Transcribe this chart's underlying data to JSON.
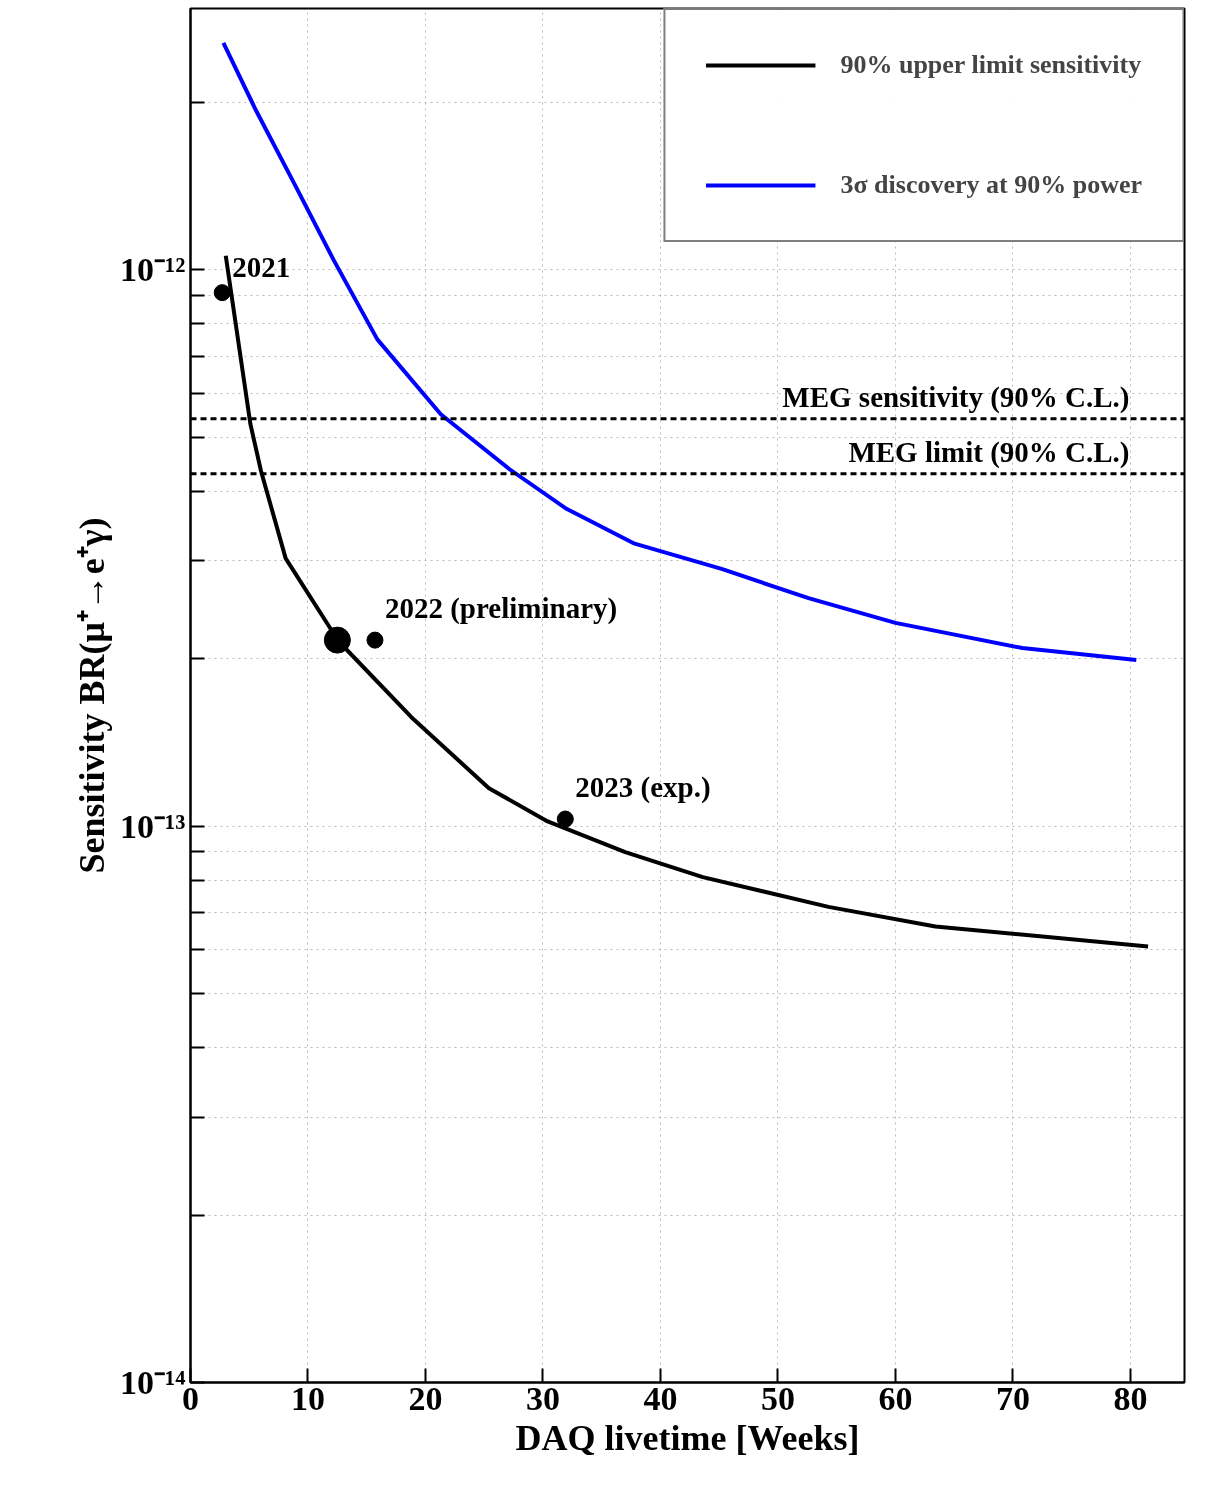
{
  "chart_data": {
    "type": "line",
    "xlabel": "DAQ livetime [Weeks]",
    "ylabel": "Sensitivity BR(μ⁺→e⁺γ)",
    "xlim": [
      0,
      84.6
    ],
    "ylim": [
      1e-14,
      2.95e-12
    ],
    "log": "y",
    "xticks": [
      0,
      10,
      20,
      30,
      40,
      50,
      60,
      70,
      80
    ],
    "yticks": [
      {
        "value": 1e-14,
        "label": "10⁻¹⁴"
      },
      {
        "value": 2e-14,
        "label": null
      },
      {
        "value": 3e-14,
        "label": null
      },
      {
        "value": 4e-14,
        "label": null
      },
      {
        "value": 5e-14,
        "label": null
      },
      {
        "value": 6e-14,
        "label": null
      },
      {
        "value": 7e-14,
        "label": null
      },
      {
        "value": 8e-14,
        "label": null
      },
      {
        "value": 9e-14,
        "label": null
      },
      {
        "value": 1e-13,
        "label": "10⁻¹³"
      },
      {
        "value": 2e-13,
        "label": null
      },
      {
        "value": 3e-13,
        "label": null
      },
      {
        "value": 4e-13,
        "label": null
      },
      {
        "value": 5e-13,
        "label": null
      },
      {
        "value": 6e-13,
        "label": null
      },
      {
        "value": 7e-13,
        "label": null
      },
      {
        "value": 8e-13,
        "label": null
      },
      {
        "value": 9e-13,
        "label": null
      },
      {
        "value": 1e-12,
        "label": "10⁻¹²"
      },
      {
        "value": 2e-12,
        "label": null
      }
    ],
    "grid": true,
    "legend": "top right",
    "series": [
      {
        "name": "90% upper limit sensitivity",
        "color": "#000000",
        "line_style": "solid",
        "x": [
          3.0,
          5.1,
          6.0,
          8.1,
          12.6,
          18.8,
          25.4,
          30.4,
          37,
          43.6,
          54.3,
          63.4,
          81.5
        ],
        "values": [
          1.06e-12,
          5.28e-13,
          4.35e-13,
          3.03e-13,
          2.15e-13,
          1.57e-13,
          1.17e-13,
          1.02e-13,
          8.98e-14,
          8.1e-14,
          7.16e-14,
          6.6e-14,
          6.08e-14
        ]
      },
      {
        "name": "3σ discovery at 90% power",
        "color": "#0000ff",
        "line_style": "solid",
        "x": [
          2.8,
          5.6,
          8.9,
          12.2,
          15.9,
          21.3,
          27.1,
          32,
          37.8,
          45.2,
          52.6,
          60,
          70.8,
          80.5
        ],
        "values": [
          2.56e-12,
          1.93e-12,
          1.42e-12,
          1.04e-12,
          7.5e-13,
          5.5e-13,
          4.39e-13,
          3.72e-13,
          3.22e-13,
          2.9e-13,
          2.57e-13,
          2.32e-13,
          2.09e-13,
          1.99e-13
        ]
      },
      {
        "type": "bubble",
        "color": "#000000",
        "x": [
          2.7,
          12.5,
          15.7,
          31.9
        ],
        "values": [
          9.1e-13,
          2.16e-13,
          2.16e-13,
          1.03e-13
        ],
        "sizes": [
          0.38,
          1,
          0.38,
          0.38
        ]
      }
    ],
    "ref_lines": [
      {
        "axis": "y",
        "value": 5.4e-13,
        "label": "MEG sensitivity (90% C.L.)",
        "color": "#000000",
        "line_style": "dashed"
      },
      {
        "axis": "y",
        "value": 4.3e-13,
        "label": "MEG limit (90% C.L.)",
        "color": "#000000",
        "line_style": "dashed"
      }
    ],
    "annotations": [
      {
        "text": "2021",
        "x": 2.7,
        "y": 9.1e-13
      },
      {
        "text": "2022 (preliminary)",
        "x": 15.7,
        "y": 2.16e-13
      },
      {
        "text": "2023 (exp.)",
        "x": 31.9,
        "y": 1.03e-13
      }
    ]
  }
}
